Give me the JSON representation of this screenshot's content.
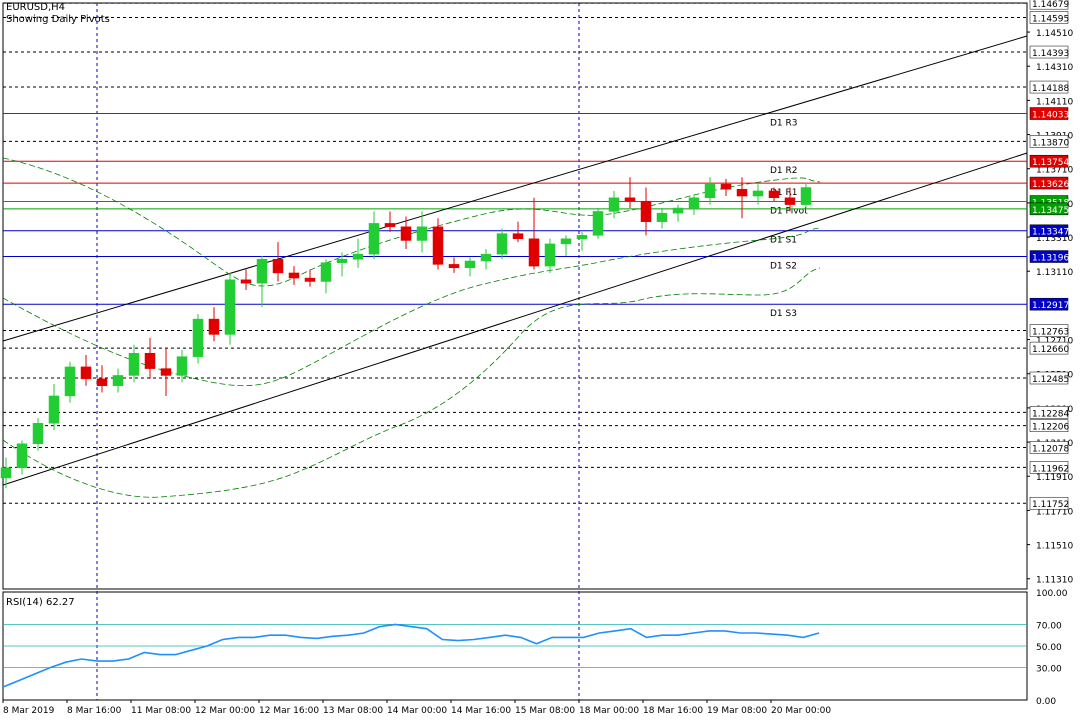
{
  "header": {
    "symbol": "EURUSD,H4",
    "subtitle": "Showing Daily Pivots"
  },
  "rsi_header": "RSI(14) 62.27",
  "chart_data": [
    {
      "type": "candlestick",
      "title": "EURUSD,H4",
      "subtitle": "Showing Daily Pivots",
      "ylim": [
        1.1125,
        1.1468
      ],
      "price_ticks": [
        "1.14510",
        "1.14310",
        "1.14110",
        "1.13910",
        "1.13710",
        "1.13510",
        "1.13310",
        "1.13110",
        "1.12710",
        "1.12510",
        "1.12310",
        "1.12110",
        "1.11910",
        "1.11710",
        "1.11510",
        "1.11310"
      ],
      "time_labels": [
        "8 Mar 2019",
        "8 Mar 16:00",
        "11 Mar 08:00",
        "12 Mar 00:00",
        "12 Mar 16:00",
        "13 Mar 08:00",
        "14 Mar 00:00",
        "14 Mar 16:00",
        "15 Mar 08:00",
        "18 Mar 00:00",
        "18 Mar 16:00",
        "19 Mar 08:00",
        "20 Mar 00:00"
      ],
      "horizontal_levels": [
        {
          "price": 1.14679,
          "label": "1.14679",
          "style": "dotted",
          "color": "#000000"
        },
        {
          "price": 1.14595,
          "label": "1.14595",
          "style": "dotted",
          "color": "#000000"
        },
        {
          "price": 1.14393,
          "label": "1.14393",
          "style": "dotted",
          "color": "#000000"
        },
        {
          "price": 1.14188,
          "label": "1.14188",
          "style": "dotted",
          "color": "#000000"
        },
        {
          "price": 1.14033,
          "label": "1.14033",
          "style": "solid",
          "color": "#e00000",
          "pivot": "D1 R3"
        },
        {
          "price": 1.1387,
          "label": "1.13870",
          "style": "dotted",
          "color": "#000000"
        },
        {
          "price": 1.13754,
          "label": "1.13754",
          "style": "solid",
          "color": "#e00000",
          "pivot": "D1 R2"
        },
        {
          "price": 1.13626,
          "label": "1.13626",
          "style": "solid",
          "color": "#e00000",
          "pivot": "D1 R1"
        },
        {
          "price": 1.13518,
          "label": "1.13518",
          "style": "solid",
          "color": "#00a000",
          "pivot": "D1 Pivot"
        },
        {
          "price": 1.13475,
          "label": "1.13475",
          "style": "solid",
          "color": "#00a000"
        },
        {
          "price": 1.13347,
          "label": "1.13347",
          "style": "solid",
          "color": "#0000cc",
          "pivot": "D1 S1"
        },
        {
          "price": 1.13196,
          "label": "1.13196",
          "style": "solid",
          "color": "#0000cc",
          "pivot": "D1 S2"
        },
        {
          "price": 1.12917,
          "label": "1.12917",
          "style": "solid",
          "color": "#0000cc",
          "pivot": "D1 S3"
        },
        {
          "price": 1.12763,
          "label": "1.12763",
          "style": "dotted",
          "color": "#000000"
        },
        {
          "price": 1.1266,
          "label": "1.12660",
          "style": "dotted",
          "color": "#000000"
        },
        {
          "price": 1.12485,
          "label": "1.12485",
          "style": "dotted",
          "color": "#000000"
        },
        {
          "price": 1.12284,
          "label": "1.12284",
          "style": "dotted",
          "color": "#000000"
        },
        {
          "price": 1.12206,
          "label": "1.12206",
          "style": "dotted",
          "color": "#000000"
        },
        {
          "price": 1.12078,
          "label": "1.12078",
          "style": "dotted",
          "color": "#000000"
        },
        {
          "price": 1.11962,
          "label": "1.11962",
          "style": "dotted",
          "color": "#000000"
        },
        {
          "price": 1.11752,
          "label": "1.11752",
          "style": "dotted",
          "color": "#000000"
        }
      ],
      "ohlc": [
        [
          1.119,
          1.1202,
          1.1184,
          1.1196
        ],
        [
          1.1196,
          1.1212,
          1.1192,
          1.121
        ],
        [
          1.121,
          1.1225,
          1.1206,
          1.1222
        ],
        [
          1.1222,
          1.1245,
          1.1218,
          1.1238
        ],
        [
          1.1238,
          1.1258,
          1.1234,
          1.1255
        ],
        [
          1.1255,
          1.1262,
          1.1244,
          1.1248
        ],
        [
          1.1248,
          1.1256,
          1.124,
          1.1244
        ],
        [
          1.1244,
          1.1254,
          1.124,
          1.125
        ],
        [
          1.125,
          1.1268,
          1.1246,
          1.1263
        ],
        [
          1.1263,
          1.1272,
          1.1248,
          1.1254
        ],
        [
          1.1254,
          1.1266,
          1.1238,
          1.125
        ],
        [
          1.125,
          1.1265,
          1.1246,
          1.1261
        ],
        [
          1.1261,
          1.1286,
          1.1257,
          1.1283
        ],
        [
          1.1283,
          1.129,
          1.127,
          1.1274
        ],
        [
          1.1274,
          1.131,
          1.1268,
          1.1306
        ],
        [
          1.1306,
          1.1312,
          1.13,
          1.1304
        ],
        [
          1.1304,
          1.132,
          1.129,
          1.1318
        ],
        [
          1.1318,
          1.1328,
          1.1305,
          1.131
        ],
        [
          1.131,
          1.1314,
          1.1303,
          1.1307
        ],
        [
          1.1307,
          1.1312,
          1.1302,
          1.1305
        ],
        [
          1.1305,
          1.1318,
          1.1298,
          1.1316
        ],
        [
          1.1316,
          1.1322,
          1.1308,
          1.1318
        ],
        [
          1.1318,
          1.133,
          1.1313,
          1.1321
        ],
        [
          1.1321,
          1.1346,
          1.1318,
          1.1339
        ],
        [
          1.1339,
          1.1346,
          1.1334,
          1.1337
        ],
        [
          1.1337,
          1.1343,
          1.1324,
          1.1329
        ],
        [
          1.1329,
          1.1346,
          1.1322,
          1.1337
        ],
        [
          1.1337,
          1.1342,
          1.1312,
          1.1315
        ],
        [
          1.1315,
          1.1319,
          1.131,
          1.1313
        ],
        [
          1.1313,
          1.1319,
          1.1308,
          1.1317
        ],
        [
          1.1317,
          1.1324,
          1.1312,
          1.1321
        ],
        [
          1.1321,
          1.1336,
          1.1318,
          1.1333
        ],
        [
          1.1333,
          1.134,
          1.1328,
          1.133
        ],
        [
          1.133,
          1.1354,
          1.1312,
          1.1314
        ],
        [
          1.1314,
          1.133,
          1.131,
          1.1327
        ],
        [
          1.1327,
          1.1332,
          1.132,
          1.133
        ],
        [
          1.133,
          1.1334,
          1.1323,
          1.1332
        ],
        [
          1.1332,
          1.1348,
          1.133,
          1.1346
        ],
        [
          1.1346,
          1.1358,
          1.1342,
          1.1354
        ],
        [
          1.1354,
          1.1366,
          1.1348,
          1.1352
        ],
        [
          1.1352,
          1.136,
          1.1332,
          1.134
        ],
        [
          1.134,
          1.1348,
          1.1336,
          1.1345
        ],
        [
          1.1345,
          1.135,
          1.134,
          1.1348
        ],
        [
          1.1348,
          1.1356,
          1.1344,
          1.1354
        ],
        [
          1.1354,
          1.1366,
          1.135,
          1.1362
        ],
        [
          1.1362,
          1.1365,
          1.1355,
          1.1359
        ],
        [
          1.1359,
          1.1366,
          1.1342,
          1.1355
        ],
        [
          1.1355,
          1.1362,
          1.135,
          1.1358
        ],
        [
          1.1358,
          1.136,
          1.1352,
          1.1354
        ],
        [
          1.1354,
          1.136,
          1.1346,
          1.135
        ],
        [
          1.135,
          1.1362,
          1.1348,
          1.136
        ]
      ]
    },
    {
      "type": "line",
      "title": "RSI(14) 62.27",
      "ylim": [
        0,
        100
      ],
      "y_ticks": [
        "100.00",
        "70.00",
        "50.00",
        "30.00",
        "0.00"
      ],
      "reference_levels": [
        70,
        50,
        30
      ],
      "series": [
        {
          "values": [
            12,
            18,
            24,
            30,
            35,
            38,
            36,
            36,
            38,
            44,
            42,
            42,
            46,
            50,
            56,
            58,
            58,
            60,
            60,
            58,
            57,
            59,
            60,
            62,
            68,
            70,
            68,
            66,
            56,
            55,
            56,
            58,
            60,
            58,
            52,
            58,
            58,
            58,
            62,
            64,
            66,
            58,
            60,
            60,
            62,
            64,
            64,
            62,
            62,
            61,
            60,
            58,
            62
          ]
        }
      ]
    }
  ]
}
